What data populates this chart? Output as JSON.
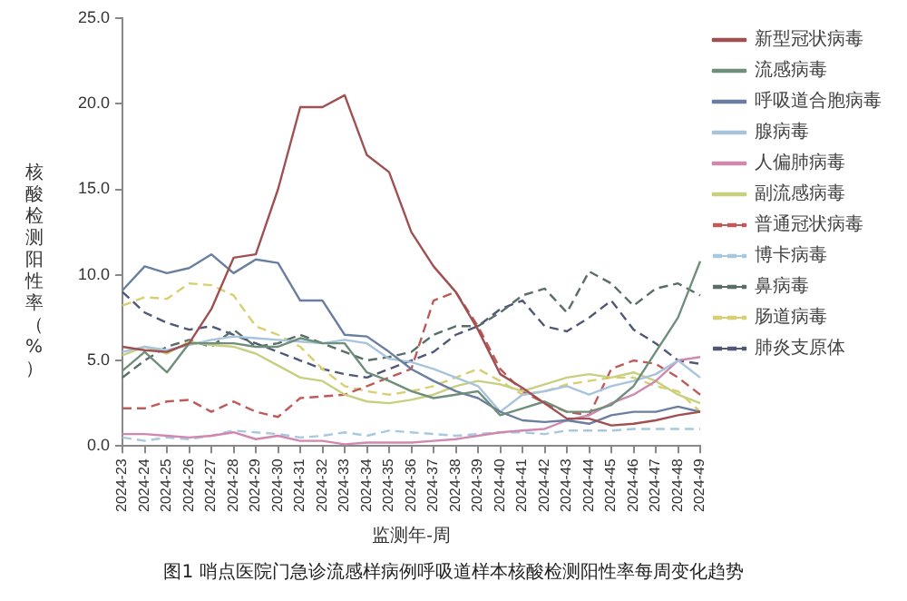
{
  "chart_data": {
    "type": "line",
    "ylabel": "核酸检测阳性率（%）",
    "xlabel": "监测年-周",
    "annotations": [
      "图1 哨点医院门急诊流感样病例呼吸道样本核酸检测阳性率每周变化趋势"
    ],
    "categories": [
      "2024-23",
      "2024-24",
      "2024-25",
      "2024-26",
      "2024-27",
      "2024-28",
      "2024-29",
      "2024-30",
      "2024-31",
      "2024-32",
      "2024-33",
      "2024-34",
      "2024-35",
      "2024-36",
      "2024-37",
      "2024-38",
      "2024-39",
      "2024-40",
      "2024-41",
      "2024-42",
      "2024-43",
      "2024-44",
      "2024-45",
      "2024-46",
      "2024-47",
      "2024-48",
      "2024-49"
    ],
    "ylim": [
      0,
      25
    ],
    "yticks": [
      {
        "value": 0,
        "label": "0.0"
      },
      {
        "value": 5,
        "label": "5.0"
      },
      {
        "value": 10,
        "label": "10.0"
      },
      {
        "value": 15,
        "label": "15.0"
      },
      {
        "value": 20,
        "label": "20.0"
      },
      {
        "value": 25,
        "label": "25.0"
      }
    ],
    "grid": false,
    "legend": "right",
    "marker": "none",
    "series": [
      {
        "name": "新型冠状病毒",
        "color": "#a05050",
        "line_style": "solid",
        "values": [
          5.8,
          5.6,
          5.5,
          6.0,
          8.0,
          11.0,
          11.2,
          15.0,
          19.8,
          19.8,
          20.5,
          17.0,
          16.0,
          12.5,
          10.5,
          9.0,
          6.8,
          4.2,
          3.4,
          2.5,
          1.6,
          1.6,
          1.2,
          1.3,
          1.5,
          1.8,
          2.0
        ]
      },
      {
        "name": "流感病毒",
        "color": "#6e8f7a",
        "line_style": "solid",
        "values": [
          4.4,
          5.5,
          4.3,
          6.0,
          6.0,
          6.0,
          5.8,
          5.8,
          6.3,
          6.0,
          6.0,
          4.3,
          3.8,
          3.2,
          2.8,
          3.0,
          3.2,
          1.8,
          2.2,
          2.6,
          2.0,
          2.0,
          2.4,
          3.5,
          5.5,
          7.5,
          10.8
        ]
      },
      {
        "name": "呼吸道合胞病毒",
        "color": "#6a7fa0",
        "line_style": "solid",
        "values": [
          9.1,
          10.5,
          10.1,
          10.4,
          11.2,
          10.1,
          10.9,
          10.7,
          8.5,
          8.5,
          6.5,
          6.4,
          5.5,
          4.5,
          3.8,
          3.2,
          2.8,
          2.0,
          1.5,
          1.4,
          1.5,
          1.3,
          1.8,
          2.0,
          2.0,
          2.3,
          2.0
        ]
      },
      {
        "name": "腺病毒",
        "color": "#a8c4dc",
        "line_style": "solid",
        "values": [
          5.5,
          5.8,
          5.6,
          5.9,
          6.2,
          6.4,
          6.3,
          6.2,
          6.1,
          6.0,
          6.2,
          6.0,
          5.1,
          4.9,
          4.5,
          4.0,
          3.5,
          2.0,
          3.0,
          3.2,
          3.5,
          3.0,
          3.5,
          3.8,
          4.2,
          5.0,
          4.0
        ]
      },
      {
        "name": "人偏肺病毒",
        "color": "#d088b0",
        "line_style": "solid",
        "values": [
          0.7,
          0.7,
          0.6,
          0.5,
          0.6,
          0.8,
          0.4,
          0.6,
          0.3,
          0.3,
          0.1,
          0.2,
          0.2,
          0.2,
          0.3,
          0.4,
          0.6,
          0.8,
          0.9,
          1.0,
          1.5,
          1.8,
          2.5,
          3.0,
          3.8,
          5.0,
          5.2
        ]
      },
      {
        "name": "副流感病毒",
        "color": "#c8d080",
        "line_style": "solid",
        "values": [
          5.3,
          5.8,
          5.4,
          6.1,
          5.9,
          5.8,
          5.4,
          4.7,
          4.0,
          3.8,
          3.0,
          2.6,
          2.5,
          2.7,
          3.0,
          3.5,
          3.8,
          3.6,
          3.2,
          3.6,
          4.0,
          4.2,
          4.0,
          4.3,
          3.8,
          3.0,
          2.5
        ]
      },
      {
        "name": "普通冠状病毒",
        "color": "#c05a5a",
        "line_style": "dashed",
        "values": [
          2.2,
          2.2,
          2.6,
          2.7,
          2.0,
          2.6,
          2.0,
          1.7,
          2.8,
          2.9,
          3.0,
          3.5,
          4.0,
          4.5,
          8.5,
          9.0,
          7.0,
          4.5,
          3.2,
          2.5,
          2.0,
          1.8,
          4.5,
          5.0,
          4.8,
          4.0,
          3.0
        ]
      },
      {
        "name": "博卡病毒",
        "color": "#a8c8e0",
        "line_style": "dashed",
        "values": [
          0.5,
          0.3,
          0.5,
          0.4,
          0.6,
          0.9,
          0.8,
          0.7,
          0.5,
          0.6,
          0.8,
          0.6,
          0.9,
          0.8,
          0.7,
          0.6,
          0.7,
          0.8,
          0.8,
          0.7,
          0.9,
          0.9,
          0.9,
          1.0,
          1.0,
          1.0,
          1.0
        ]
      },
      {
        "name": "鼻病毒",
        "color": "#5a6e68",
        "line_style": "dashed",
        "values": [
          4.0,
          5.0,
          5.8,
          6.2,
          5.8,
          6.8,
          5.8,
          6.0,
          6.5,
          6.0,
          5.5,
          5.0,
          5.2,
          5.5,
          6.5,
          7.0,
          7.0,
          7.8,
          8.8,
          9.2,
          7.8,
          10.2,
          9.5,
          8.2,
          9.2,
          9.5,
          8.8
        ]
      },
      {
        "name": "肠道病毒",
        "color": "#d8d070",
        "line_style": "dashed",
        "values": [
          8.2,
          8.7,
          8.6,
          9.5,
          9.4,
          8.8,
          7.0,
          6.5,
          5.8,
          4.5,
          3.5,
          3.2,
          3.0,
          3.2,
          3.5,
          4.0,
          4.5,
          3.8,
          3.0,
          3.2,
          3.6,
          3.8,
          4.0,
          4.0,
          3.5,
          3.2,
          2.0
        ]
      },
      {
        "name": "肺炎支原体",
        "color": "#505878",
        "line_style": "dashed",
        "values": [
          9.0,
          7.8,
          7.2,
          6.8,
          7.0,
          6.5,
          6.0,
          5.5,
          5.0,
          4.5,
          4.2,
          4.0,
          4.5,
          5.0,
          5.5,
          6.5,
          7.0,
          8.0,
          8.5,
          7.0,
          6.7,
          7.5,
          8.5,
          6.8,
          6.0,
          5.0,
          4.8
        ]
      }
    ]
  }
}
